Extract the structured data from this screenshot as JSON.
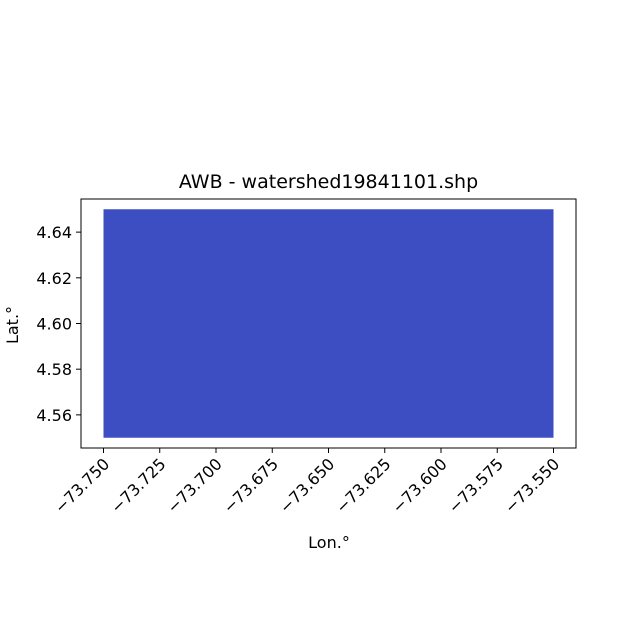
{
  "chart_data": {
    "type": "area",
    "title": "AWB - watershed19841101.shp",
    "xlabel": "Lon.°",
    "ylabel": "Lat.°",
    "xlim": [
      -73.76,
      -73.54
    ],
    "ylim": [
      4.5455,
      4.6545
    ],
    "xticks": [
      -73.75,
      -73.725,
      -73.7,
      -73.675,
      -73.65,
      -73.625,
      -73.6,
      -73.575,
      -73.55
    ],
    "xtick_labels": [
      "−73.750",
      "−73.725",
      "−73.700",
      "−73.675",
      "−73.650",
      "−73.625",
      "−73.600",
      "−73.575",
      "−73.550"
    ],
    "yticks": [
      4.56,
      4.58,
      4.6,
      4.62,
      4.64
    ],
    "ytick_labels": [
      "4.56",
      "4.58",
      "4.60",
      "4.62",
      "4.64"
    ],
    "polygon": {
      "name": "watershed",
      "lon": [
        -73.75,
        -73.55,
        -73.55,
        -73.75
      ],
      "lat": [
        4.55,
        4.55,
        4.65,
        4.65
      ],
      "color": "#3c4ec2"
    },
    "grid": false
  }
}
